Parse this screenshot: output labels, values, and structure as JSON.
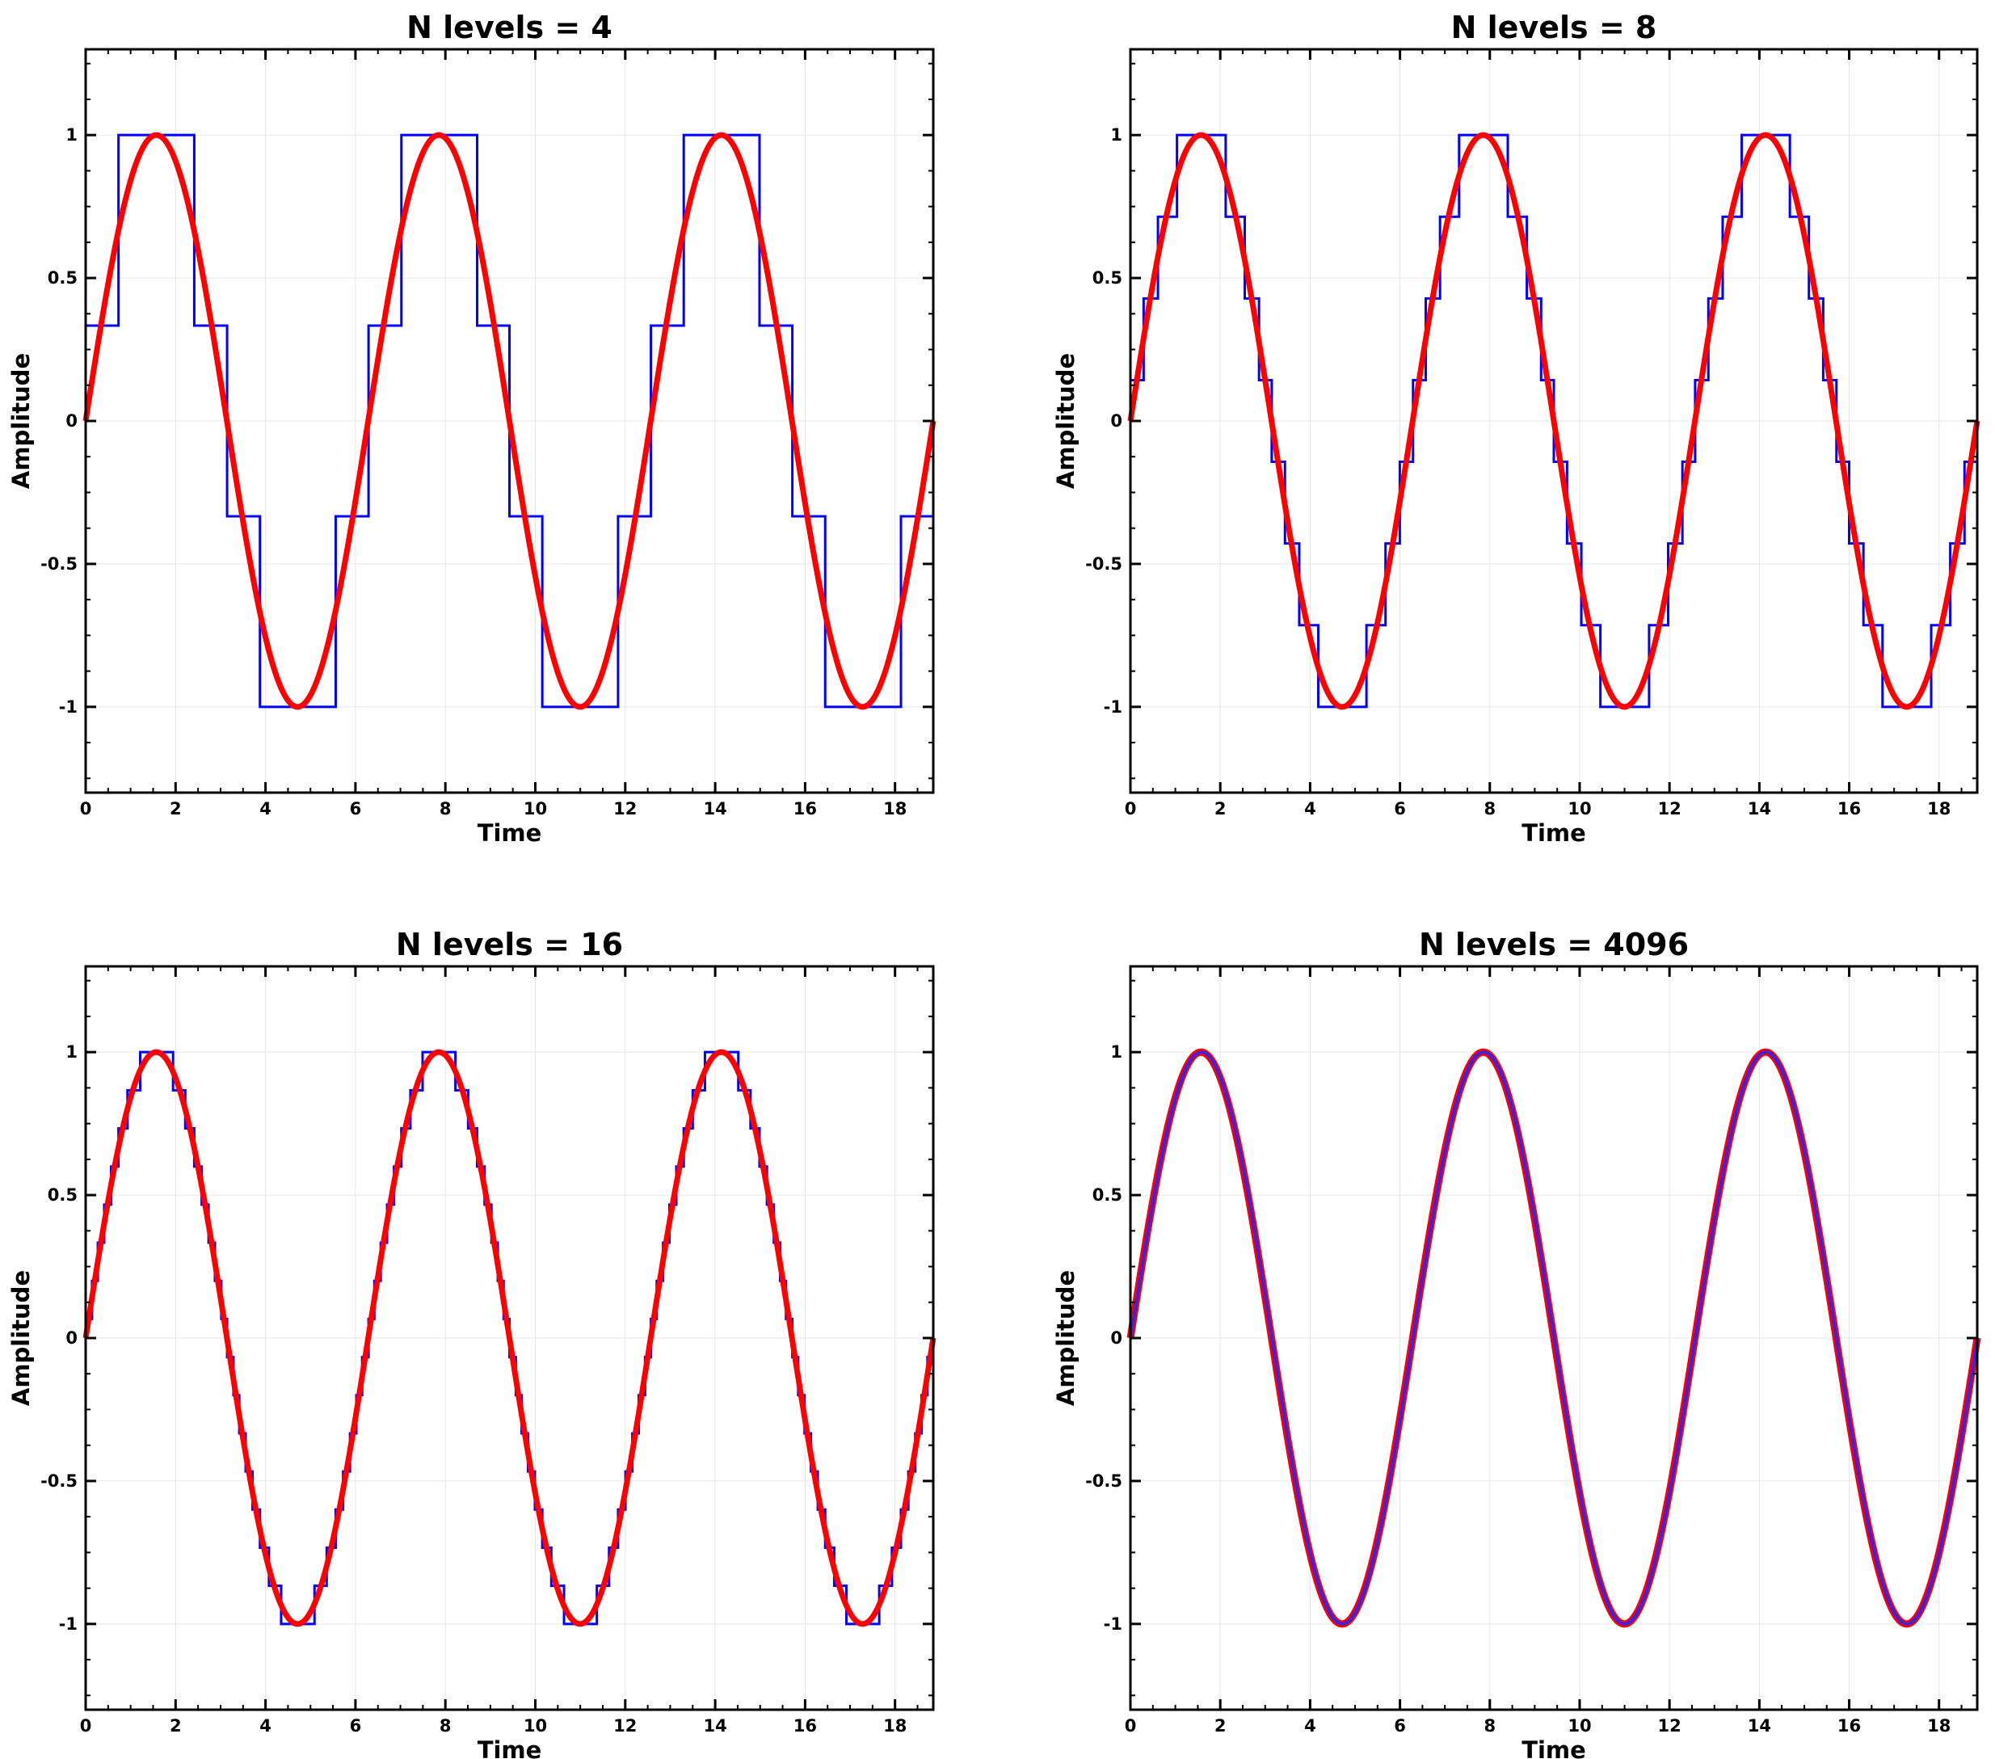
{
  "chart_data": [
    {
      "type": "line",
      "title": "N levels = 4",
      "xlabel": "Time",
      "ylabel": "Amplitude",
      "xlim": [
        0,
        18.85
      ],
      "ylim": [
        -1.3,
        1.3
      ],
      "xticks": [
        0,
        2,
        4,
        6,
        8,
        10,
        12,
        14,
        16,
        18
      ],
      "xtick_labels": [
        "0",
        "2",
        "4",
        "6",
        "8",
        "10",
        "12",
        "14",
        "16",
        "18"
      ],
      "yticks": [
        1,
        0.5,
        0,
        -0.5,
        -1
      ],
      "ytick_labels": [
        "1",
        "0.5",
        "0",
        "-0.5",
        "-1"
      ],
      "grid": true,
      "levels": 4,
      "series": [
        {
          "role": "quantized",
          "color": "#0000ff",
          "function": "sin",
          "t_range": [
            0,
            18.85
          ],
          "style": "step"
        },
        {
          "role": "original",
          "color": "#ff0000",
          "function": "sin",
          "t_range": [
            0,
            18.85
          ],
          "style": "line"
        }
      ]
    },
    {
      "type": "line",
      "title": "N levels = 8",
      "xlabel": "Time",
      "ylabel": "Amplitude",
      "xlim": [
        0,
        18.85
      ],
      "ylim": [
        -1.3,
        1.3
      ],
      "xticks": [
        0,
        2,
        4,
        6,
        8,
        10,
        12,
        14,
        16,
        18
      ],
      "xtick_labels": [
        "0",
        "2",
        "4",
        "6",
        "8",
        "10",
        "12",
        "14",
        "16",
        "18"
      ],
      "yticks": [
        1,
        0.5,
        0,
        -0.5,
        -1
      ],
      "ytick_labels": [
        "1",
        "0.5",
        "0",
        "-0.5",
        "-1"
      ],
      "grid": true,
      "levels": 8,
      "series": [
        {
          "role": "quantized",
          "color": "#0000ff",
          "function": "sin",
          "t_range": [
            0,
            18.85
          ],
          "style": "step"
        },
        {
          "role": "original",
          "color": "#ff0000",
          "function": "sin",
          "t_range": [
            0,
            18.85
          ],
          "style": "line"
        }
      ]
    },
    {
      "type": "line",
      "title": "N levels = 16",
      "xlabel": "Time",
      "ylabel": "Amplitude",
      "xlim": [
        0,
        18.85
      ],
      "ylim": [
        -1.3,
        1.3
      ],
      "xticks": [
        0,
        2,
        4,
        6,
        8,
        10,
        12,
        14,
        16,
        18
      ],
      "xtick_labels": [
        "0",
        "2",
        "4",
        "6",
        "8",
        "10",
        "12",
        "14",
        "16",
        "18"
      ],
      "yticks": [
        1,
        0.5,
        0,
        -0.5,
        -1
      ],
      "ytick_labels": [
        "1",
        "0.5",
        "0",
        "-0.5",
        "-1"
      ],
      "grid": true,
      "levels": 16,
      "series": [
        {
          "role": "quantized",
          "color": "#0000ff",
          "function": "sin",
          "t_range": [
            0,
            18.85
          ],
          "style": "step"
        },
        {
          "role": "original",
          "color": "#ff0000",
          "function": "sin",
          "t_range": [
            0,
            18.85
          ],
          "style": "line"
        }
      ]
    },
    {
      "type": "line",
      "title": "N levels = 4096",
      "xlabel": "Time",
      "ylabel": "Amplitude",
      "xlim": [
        0,
        18.85
      ],
      "ylim": [
        -1.3,
        1.3
      ],
      "xticks": [
        0,
        2,
        4,
        6,
        8,
        10,
        12,
        14,
        16,
        18
      ],
      "xtick_labels": [
        "0",
        "2",
        "4",
        "6",
        "8",
        "10",
        "12",
        "14",
        "16",
        "18"
      ],
      "yticks": [
        1,
        0.5,
        0,
        -0.5,
        -1
      ],
      "ytick_labels": [
        "1",
        "0.5",
        "0",
        "-0.5",
        "-1"
      ],
      "grid": true,
      "levels": 4096,
      "series": [
        {
          "role": "quantized",
          "color": "#0000ff",
          "function": "sin",
          "t_range": [
            0,
            18.85
          ],
          "style": "step"
        },
        {
          "role": "original",
          "color": "#ff0000",
          "function": "sin",
          "t_range": [
            0,
            18.85
          ],
          "style": "line"
        }
      ]
    }
  ]
}
